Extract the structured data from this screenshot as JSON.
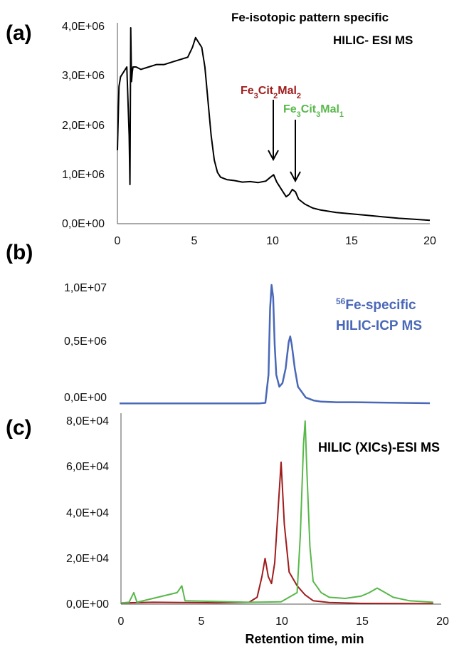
{
  "panels": {
    "a": {
      "label": "(a)",
      "title_line1": "Fe-isotopic pattern specific",
      "title_line2": "HILIC- ESI MS",
      "y_ticks": [
        "0,0E+00",
        "1,0E+06",
        "2,0E+06",
        "3,0E+06",
        "4,0E+06"
      ],
      "x_ticks": [
        "0",
        "5",
        "10",
        "15",
        "20"
      ],
      "annotation_1": {
        "base": "Fe",
        "s1": "3",
        "mid": "Cit",
        "s2": "2",
        "end": "Mal",
        "s3": "2"
      },
      "annotation_2": {
        "base": "Fe",
        "s1": "3",
        "mid": "Cit",
        "s2": "3",
        "end": "Mal",
        "s3": "1"
      }
    },
    "b": {
      "label": "(b)",
      "title_sup": "56",
      "title_line1": "Fe-specific",
      "title_line2": "HILIC-ICP MS",
      "y_ticks": [
        "0,0E+00",
        "0,5E+06",
        "1,0E+07"
      ]
    },
    "c": {
      "label": "(c)",
      "title": "HILIC (XICs)-ESI MS",
      "y_ticks": [
        "0,0E+00",
        "2,0E+04",
        "4,0E+04",
        "6,0E+04",
        "8,0E+04"
      ],
      "x_ticks": [
        "0",
        "5",
        "10",
        "15",
        "20"
      ],
      "xlabel": "Retention time, min"
    }
  },
  "chart_data": [
    {
      "type": "line",
      "panel": "a",
      "xlim": [
        0,
        20
      ],
      "ylim": [
        0,
        4000000
      ],
      "grid": false,
      "series": [
        {
          "color": "#000000",
          "x": [
            0.0,
            0.1,
            0.2,
            0.4,
            0.6,
            0.75,
            0.8,
            0.85,
            0.9,
            0.95,
            1.0,
            1.2,
            1.5,
            2.0,
            2.5,
            3.0,
            3.5,
            4.0,
            4.5,
            4.8,
            5.0,
            5.2,
            5.4,
            5.6,
            5.8,
            6.0,
            6.2,
            6.4,
            6.6,
            7.0,
            7.5,
            8.0,
            8.5,
            9.0,
            9.5,
            9.8,
            10.0,
            10.2,
            10.5,
            10.8,
            11.0,
            11.2,
            11.4,
            11.6,
            12.0,
            12.5,
            13.0,
            14.0,
            15.0,
            16.0,
            17.0,
            18.0,
            19.0,
            20.0
          ],
          "y": [
            1500000,
            2800000,
            3000000,
            3100000,
            3200000,
            1800000,
            800000,
            4000000,
            2900000,
            3100000,
            3200000,
            3200000,
            3150000,
            3200000,
            3250000,
            3250000,
            3300000,
            3350000,
            3400000,
            3600000,
            3800000,
            3700000,
            3600000,
            3200000,
            2500000,
            1800000,
            1300000,
            1050000,
            950000,
            900000,
            880000,
            850000,
            860000,
            840000,
            870000,
            950000,
            1000000,
            850000,
            700000,
            550000,
            600000,
            700000,
            650000,
            500000,
            400000,
            320000,
            280000,
            230000,
            200000,
            170000,
            140000,
            110000,
            90000,
            70000
          ]
        }
      ]
    },
    {
      "type": "line",
      "panel": "b",
      "xlim": [
        0,
        20
      ],
      "ylim": [
        0,
        10000000
      ],
      "grid": false,
      "series": [
        {
          "color": "#4a68b8",
          "x": [
            0.0,
            4.0,
            8.0,
            9.0,
            9.4,
            9.6,
            9.7,
            9.8,
            9.9,
            10.0,
            10.1,
            10.3,
            10.5,
            10.7,
            10.9,
            11.0,
            11.1,
            11.3,
            11.5,
            12.0,
            12.5,
            13.0,
            14.0,
            15.0,
            20.0
          ],
          "y": [
            100000,
            100000,
            100000,
            110000,
            150000,
            2500000,
            8000000,
            10000000,
            9000000,
            5000000,
            2500000,
            1500000,
            1800000,
            3000000,
            5200000,
            5700000,
            5000000,
            3000000,
            1500000,
            600000,
            350000,
            250000,
            200000,
            200000,
            120000
          ]
        }
      ]
    },
    {
      "type": "line",
      "panel": "c",
      "xlim": [
        0,
        20
      ],
      "ylim": [
        0,
        80000
      ],
      "grid": false,
      "series": [
        {
          "color": "#a01c1c",
          "x": [
            0.0,
            2.0,
            4.0,
            6.0,
            8.0,
            8.5,
            8.8,
            9.0,
            9.2,
            9.4,
            9.6,
            9.8,
            10.0,
            10.2,
            10.5,
            11.0,
            11.5,
            12.0,
            13.0,
            15.0,
            19.5
          ],
          "y": [
            500,
            800,
            700,
            600,
            800,
            3000,
            12000,
            20000,
            12000,
            9000,
            18000,
            40000,
            62000,
            35000,
            14000,
            8000,
            4000,
            1500,
            700,
            300,
            200
          ]
        },
        {
          "color": "#58b84a",
          "x": [
            0.0,
            0.5,
            0.8,
            1.0,
            3.5,
            3.8,
            4.0,
            8.0,
            10.0,
            11.0,
            11.2,
            11.4,
            11.5,
            11.6,
            11.8,
            12.0,
            12.5,
            13.0,
            14.0,
            15.0,
            15.5,
            16.0,
            16.5,
            17.0,
            18.0,
            19.5
          ],
          "y": [
            500,
            800,
            5000,
            800,
            5000,
            8000,
            1500,
            800,
            1000,
            5000,
            30000,
            70000,
            80000,
            60000,
            25000,
            10000,
            5000,
            3000,
            2500,
            3500,
            5000,
            7000,
            5000,
            3000,
            1500,
            800
          ]
        }
      ]
    }
  ]
}
